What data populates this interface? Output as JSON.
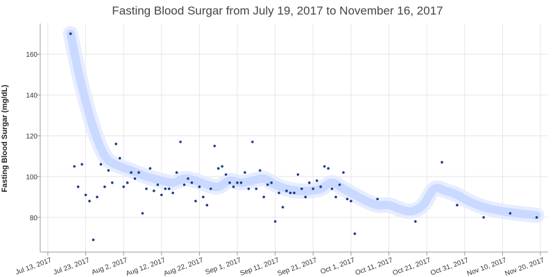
{
  "chart_data": {
    "type": "scatter",
    "title": "Fasting Blood Surgar from July 19, 2017 to November 16, 2017",
    "ylabel": "Fasting Blood Surgar (mg/dL)",
    "xlabel": "",
    "x_range": [
      "2017-07-11",
      "2017-11-22"
    ],
    "ylim": [
      63,
      175
    ],
    "y_ticks": [
      80,
      100,
      120,
      140,
      160
    ],
    "x_ticks": [
      {
        "date": "2017-07-13",
        "label": "Jul 13, 2017"
      },
      {
        "date": "2017-07-23",
        "label": "Jul 23, 2017"
      },
      {
        "date": "2017-08-02",
        "label": "Aug 2, 2017"
      },
      {
        "date": "2017-08-12",
        "label": "Aug 12, 2017"
      },
      {
        "date": "2017-08-22",
        "label": "Aug 22, 2017"
      },
      {
        "date": "2017-09-01",
        "label": "Sep 1, 2017"
      },
      {
        "date": "2017-09-11",
        "label": "Sep 11, 2017"
      },
      {
        "date": "2017-09-21",
        "label": "Sep 21, 2017"
      },
      {
        "date": "2017-10-01",
        "label": "Oct 1, 2017"
      },
      {
        "date": "2017-10-11",
        "label": "Oct 11, 2017"
      },
      {
        "date": "2017-10-21",
        "label": "Oct 21, 2017"
      },
      {
        "date": "2017-10-31",
        "label": "Oct 31, 2017"
      },
      {
        "date": "2017-11-10",
        "label": "Nov 10, 2017"
      },
      {
        "date": "2017-11-20",
        "label": "Nov 20, 2017"
      }
    ],
    "grid": true,
    "colors": {
      "points": "#1a3a8a",
      "trend": "#c9d9ff",
      "grid": "#e6e6e6"
    },
    "series": [
      {
        "kind": "points",
        "x": [
          "2017-07-19",
          "2017-07-20",
          "2017-07-21",
          "2017-07-22",
          "2017-07-23",
          "2017-07-24",
          "2017-07-25",
          "2017-07-26",
          "2017-07-27",
          "2017-07-28",
          "2017-07-29",
          "2017-07-30",
          "2017-07-31",
          "2017-08-01",
          "2017-08-02",
          "2017-08-03",
          "2017-08-04",
          "2017-08-05",
          "2017-08-06",
          "2017-08-07",
          "2017-08-08",
          "2017-08-09",
          "2017-08-10",
          "2017-08-11",
          "2017-08-12",
          "2017-08-13",
          "2017-08-14",
          "2017-08-15",
          "2017-08-16",
          "2017-08-17",
          "2017-08-18",
          "2017-08-19",
          "2017-08-20",
          "2017-08-21",
          "2017-08-22",
          "2017-08-23",
          "2017-08-24",
          "2017-08-25",
          "2017-08-26",
          "2017-08-27",
          "2017-08-28",
          "2017-08-29",
          "2017-08-30",
          "2017-08-31",
          "2017-09-01",
          "2017-09-02",
          "2017-09-03",
          "2017-09-04",
          "2017-09-05",
          "2017-09-06",
          "2017-09-07",
          "2017-09-08",
          "2017-09-09",
          "2017-09-10",
          "2017-09-11",
          "2017-09-12",
          "2017-09-13",
          "2017-09-14",
          "2017-09-15",
          "2017-09-16",
          "2017-09-17",
          "2017-09-18",
          "2017-09-19",
          "2017-09-20",
          "2017-09-21",
          "2017-09-22",
          "2017-09-23",
          "2017-09-24",
          "2017-09-25",
          "2017-09-26",
          "2017-09-27",
          "2017-09-28",
          "2017-09-29",
          "2017-09-30",
          "2017-10-01",
          "2017-10-02",
          "2017-10-08",
          "2017-10-18",
          "2017-10-25",
          "2017-10-29",
          "2017-11-05",
          "2017-11-12",
          "2017-11-19"
        ],
        "y": [
          170,
          105,
          95,
          106,
          91,
          88,
          69,
          90,
          106,
          95,
          103,
          97,
          116,
          109,
          95,
          97,
          102,
          99,
          102,
          82,
          94,
          104,
          93,
          96,
          91,
          94,
          94,
          92,
          102,
          117,
          96,
          99,
          97,
          88,
          95,
          90,
          86,
          94,
          115,
          104,
          105,
          101,
          97,
          95,
          97,
          97,
          102,
          94,
          117,
          94,
          103,
          90,
          96,
          97,
          78,
          92,
          85,
          93,
          92,
          92,
          101,
          94,
          90,
          97,
          94,
          98,
          95,
          105,
          104,
          94,
          90,
          96,
          102,
          89,
          88,
          72,
          89,
          78,
          107,
          86,
          80,
          82,
          80
        ]
      },
      {
        "kind": "trend",
        "x": [
          "2017-07-19",
          "2017-07-21",
          "2017-07-23",
          "2017-07-25",
          "2017-07-27",
          "2017-07-29",
          "2017-08-01",
          "2017-08-04",
          "2017-08-08",
          "2017-08-12",
          "2017-08-15",
          "2017-08-18",
          "2017-08-21",
          "2017-08-24",
          "2017-08-27",
          "2017-08-30",
          "2017-09-02",
          "2017-09-05",
          "2017-09-08",
          "2017-09-11",
          "2017-09-14",
          "2017-09-17",
          "2017-09-20",
          "2017-09-23",
          "2017-09-26",
          "2017-09-29",
          "2017-10-02",
          "2017-10-05",
          "2017-10-08",
          "2017-10-11",
          "2017-10-14",
          "2017-10-17",
          "2017-10-20",
          "2017-10-23",
          "2017-10-26",
          "2017-10-29",
          "2017-11-01",
          "2017-11-05",
          "2017-11-10",
          "2017-11-14",
          "2017-11-19"
        ],
        "y": [
          170,
          152,
          137,
          124,
          114,
          108,
          105,
          103,
          100,
          98,
          97,
          99,
          98,
          96,
          95,
          98,
          97,
          98,
          99,
          96,
          94,
          93,
          93,
          94,
          97,
          94,
          91,
          88,
          86,
          86,
          84,
          83,
          86,
          94,
          93,
          91,
          88,
          85,
          83,
          82,
          81
        ]
      }
    ]
  }
}
